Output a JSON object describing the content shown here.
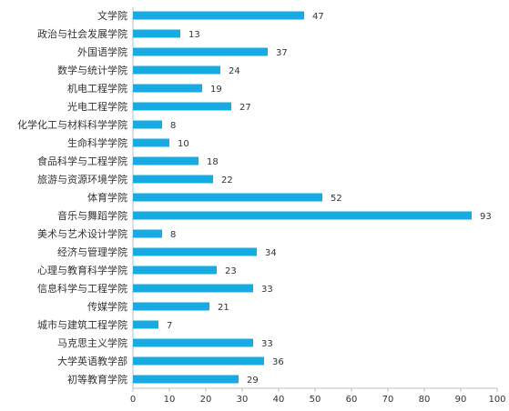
{
  "chart_data": {
    "type": "bar",
    "orientation": "horizontal",
    "categories": [
      "文学院",
      "政治与社会发展学院",
      "外国语学院",
      "数学与统计学院",
      "机电工程学院",
      "光电工程学院",
      "化学化工与材料科学学院",
      "生命科学学院",
      "食品科学与工程学院",
      "旅游与资源环境学院",
      "体育学院",
      "音乐与舞蹈学院",
      "美术与艺术设计学院",
      "经济与管理学院",
      "心理与教育科学学院",
      "信息科学与工程学院",
      "传媒学院",
      "城市与建筑工程学院",
      "马克思主义学院",
      "大学英语教学部",
      "初等教育学院"
    ],
    "values": [
      47,
      13,
      37,
      24,
      19,
      27,
      8,
      10,
      18,
      22,
      52,
      93,
      8,
      34,
      23,
      33,
      21,
      7,
      33,
      36,
      29
    ],
    "value_labels": [
      "47",
      "13",
      "37",
      "24",
      "19",
      "27",
      "8",
      "10",
      "18",
      "22",
      "52",
      "93",
      "8",
      "34",
      "23",
      "33",
      "21",
      "7",
      "33",
      "36",
      "29"
    ],
    "xlim": [
      0,
      100
    ],
    "xticks": [
      0,
      10,
      20,
      30,
      40,
      50,
      60,
      70,
      80,
      90,
      100
    ],
    "xtick_labels": [
      "0",
      "10",
      "20",
      "30",
      "40",
      "50",
      "60",
      "70",
      "80",
      "90",
      "100"
    ],
    "grid": false,
    "legend": "none",
    "bar_color": "#16ABE3",
    "axis_color": "#BFBFBF"
  }
}
